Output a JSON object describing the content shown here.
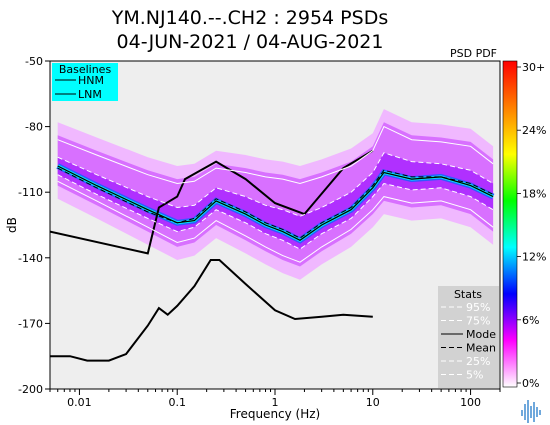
{
  "chart_data": {
    "type": "heatmap",
    "title": "YM.NJ140.--.CH2 : 2954 PSDs",
    "subtitle": "04-JUN-2021 / 04-AUG-2021",
    "xlabel": "Frequency (Hz)",
    "ylabel": "dB",
    "x_scale": "log",
    "xlim": [
      0.005,
      200
    ],
    "ylim": [
      -200,
      -50
    ],
    "x_ticks": [
      {
        "value": 0.01,
        "label": "0.01"
      },
      {
        "value": 0.1,
        "label": "0.1"
      },
      {
        "value": 1,
        "label": "1"
      },
      {
        "value": 10,
        "label": "10"
      },
      {
        "value": 100,
        "label": "100"
      }
    ],
    "y_ticks": [
      {
        "value": -50,
        "label": "-50"
      },
      {
        "value": -80,
        "label": "-80"
      },
      {
        "value": -110,
        "label": "-110"
      },
      {
        "value": -140,
        "label": "-140"
      },
      {
        "value": -170,
        "label": "-170"
      },
      {
        "value": -200,
        "label": "-200"
      }
    ],
    "colorbar": {
      "title": "PSD PDF",
      "labels": [
        "30+",
        "24%",
        "18%",
        "12%",
        "6%",
        "0%"
      ],
      "colors": [
        "#ff0000",
        "#ff8000",
        "#ffff00",
        "#00ff00",
        "#00ffff",
        "#0000ff",
        "#ff00ff",
        "#ffffff"
      ]
    },
    "baselines": {
      "title": "Baselines",
      "entries": [
        "HNM",
        "LNM"
      ],
      "bg_color": "#00ffff"
    },
    "stats": {
      "title": "Stats",
      "entries": [
        "95%",
        "75%",
        "Mode",
        "Mean",
        "25%",
        "5%"
      ]
    },
    "series": [
      {
        "name": "HNM",
        "x": [
          0.005,
          0.05,
          0.065,
          0.1,
          0.12,
          0.25,
          0.5,
          1.0,
          2.0,
          5.0,
          10.0
        ],
        "y": [
          -128,
          -138,
          -117,
          -112,
          -104,
          -96,
          -104,
          -115,
          -120,
          -99,
          -91
        ]
      },
      {
        "name": "LNM",
        "x": [
          0.005,
          0.008,
          0.012,
          0.02,
          0.03,
          0.05,
          0.065,
          0.08,
          0.1,
          0.15,
          0.22,
          0.27,
          0.5,
          1.0,
          1.6,
          3.0,
          5.0,
          10.0
        ],
        "y": [
          -185,
          -185,
          -187,
          -187,
          -184,
          -171,
          -163,
          -166,
          -162,
          -153,
          -141,
          -141,
          -152,
          -164,
          -168,
          -167,
          -166,
          -167
        ]
      },
      {
        "name": "Mode",
        "x": [
          0.006,
          0.015,
          0.05,
          0.1,
          0.15,
          0.25,
          0.5,
          0.8,
          1.2,
          1.8,
          3.0,
          6.0,
          10.0,
          13.0,
          25.0,
          50.0,
          100.0,
          170.0
        ],
        "y": [
          -98,
          -107,
          -118,
          -124,
          -123,
          -114,
          -120,
          -125,
          -128,
          -132,
          -125,
          -118,
          -108,
          -101,
          -104,
          -103,
          -107,
          -112
        ]
      },
      {
        "name": "Mean",
        "x": [
          0.006,
          0.015,
          0.05,
          0.1,
          0.15,
          0.25,
          0.5,
          0.8,
          1.2,
          1.8,
          3.0,
          6.0,
          10.0,
          13.0,
          25.0,
          50.0,
          100.0,
          170.0
        ],
        "y": [
          -99,
          -108,
          -119,
          -124,
          -122,
          -113,
          -119,
          -124,
          -127,
          -131,
          -124,
          -117,
          -107,
          -100,
          -103,
          -103,
          -106,
          -111
        ]
      },
      {
        "name": "95%",
        "x": [
          0.006,
          0.015,
          0.05,
          0.1,
          0.15,
          0.25,
          0.5,
          0.8,
          1.2,
          1.8,
          3.0,
          6.0,
          10.0,
          13.0,
          25.0,
          50.0,
          100.0,
          170.0
        ],
        "y": [
          -86,
          -93,
          -102,
          -106,
          -105,
          -99,
          -101,
          -103,
          -104,
          -106,
          -103,
          -98,
          -91,
          -80,
          -86,
          -87,
          -89,
          -97
        ]
      },
      {
        "name": "75%",
        "x": [
          0.006,
          0.015,
          0.05,
          0.1,
          0.15,
          0.25,
          0.5,
          0.8,
          1.2,
          1.8,
          3.0,
          6.0,
          10.0,
          13.0,
          25.0,
          50.0,
          100.0,
          170.0
        ],
        "y": [
          -94,
          -102,
          -112,
          -117,
          -116,
          -108,
          -112,
          -116,
          -118,
          -121,
          -117,
          -110,
          -101,
          -92,
          -96,
          -97,
          -100,
          -106
        ]
      },
      {
        "name": "25%",
        "x": [
          0.006,
          0.015,
          0.05,
          0.1,
          0.15,
          0.25,
          0.5,
          0.8,
          1.2,
          1.8,
          3.0,
          6.0,
          10.0,
          13.0,
          25.0,
          50.0,
          100.0,
          170.0
        ],
        "y": [
          -102,
          -111,
          -122,
          -128,
          -126,
          -118,
          -124,
          -129,
          -132,
          -136,
          -129,
          -122,
          -112,
          -106,
          -109,
          -108,
          -112,
          -118
        ]
      },
      {
        "name": "5%",
        "x": [
          0.006,
          0.015,
          0.05,
          0.1,
          0.15,
          0.25,
          0.5,
          0.8,
          1.2,
          1.8,
          3.0,
          6.0,
          10.0,
          13.0,
          25.0,
          50.0,
          100.0,
          170.0
        ],
        "y": [
          -105,
          -114,
          -126,
          -133,
          -131,
          -123,
          -130,
          -135,
          -139,
          -142,
          -135,
          -127,
          -118,
          -112,
          -115,
          -114,
          -118,
          -126
        ]
      }
    ]
  },
  "watermark": {
    "icon": "waveform-logo-icon",
    "color": "#6fa8dc"
  }
}
